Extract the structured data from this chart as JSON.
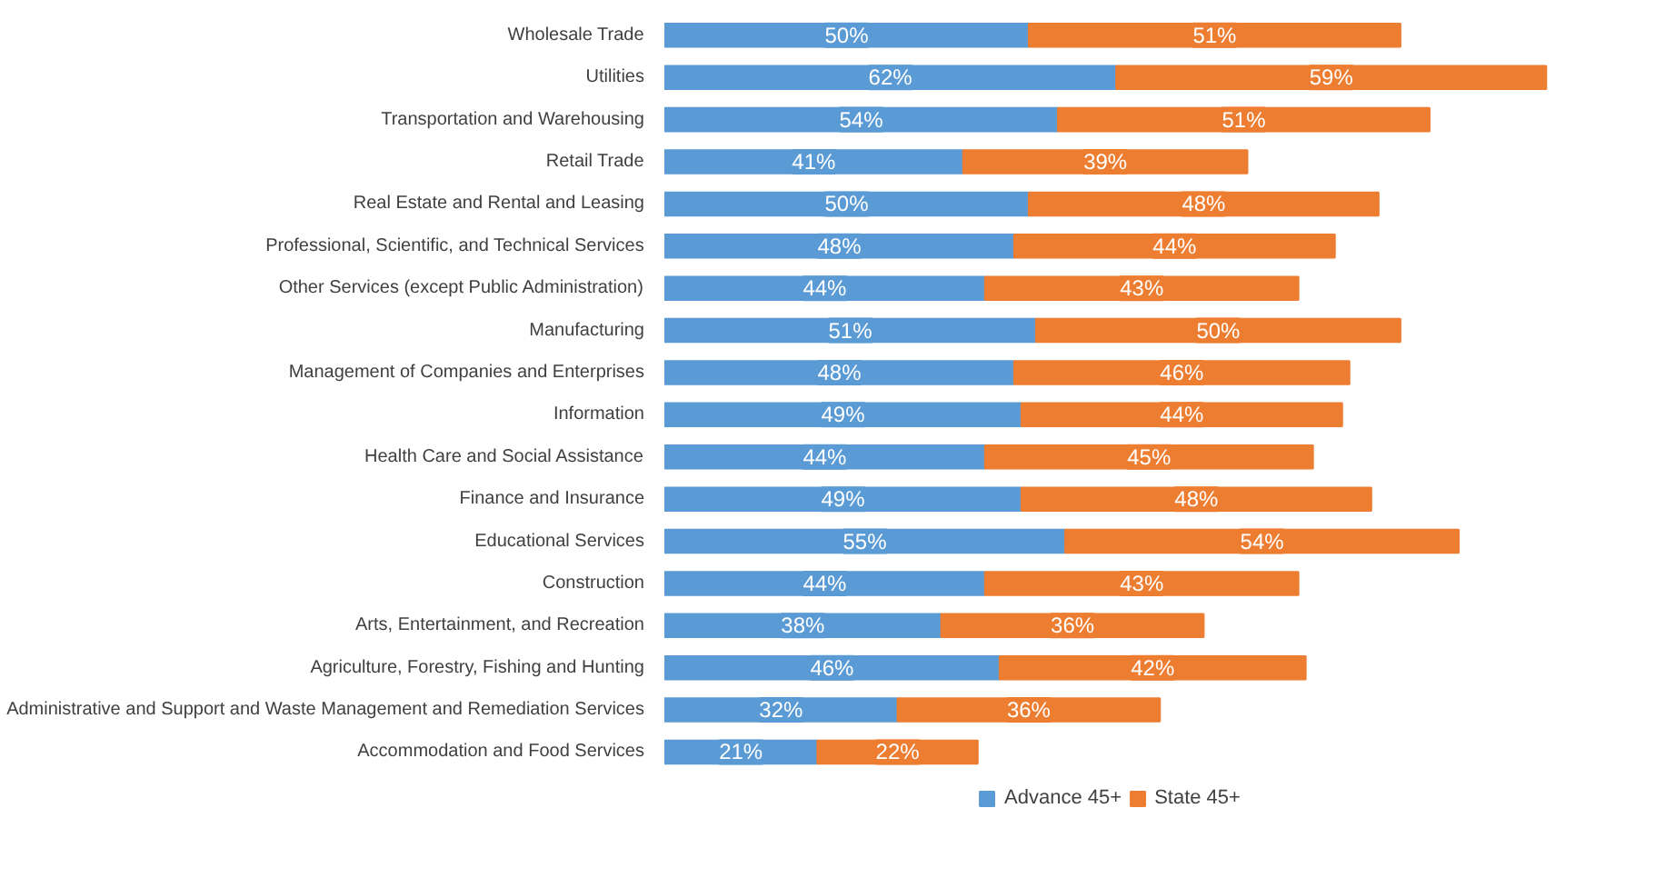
{
  "chart_data": {
    "type": "bar",
    "orientation": "horizontal",
    "stacked": true,
    "legend": "bottom",
    "grid": false,
    "categories": [
      "Wholesale Trade",
      "Utilities",
      "Transportation and Warehousing",
      "Retail Trade",
      "Real Estate and Rental and Leasing",
      "Professional, Scientific, and Technical Services",
      "Other Services (except Public Administration)",
      "Manufacturing",
      "Management of Companies and Enterprises",
      "Information",
      "Health Care and Social Assistance",
      "Finance and Insurance",
      "Educational Services",
      "Construction",
      "Arts, Entertainment, and Recreation",
      "Agriculture, Forestry, Fishing and Hunting",
      "Administrative and Support and Waste Management and Remediation Services",
      "Accommodation and Food Services"
    ],
    "series": [
      {
        "name": "Advance 45+",
        "color": "#5b9bd5",
        "values": [
          50,
          62,
          54,
          41,
          50,
          48,
          44,
          51,
          48,
          49,
          44,
          49,
          55,
          44,
          38,
          46,
          32,
          21
        ],
        "value_labels": [
          "50%",
          "62%",
          "54%",
          "41%",
          "50%",
          "48%",
          "44%",
          "51%",
          "48%",
          "49%",
          "44%",
          "49%",
          "55%",
          "44%",
          "38%",
          "46%",
          "32%",
          "21%"
        ]
      },
      {
        "name": "State 45+",
        "color": "#ed7d31",
        "values": [
          51,
          59,
          51,
          39,
          48,
          44,
          43,
          50,
          46,
          44,
          45,
          48,
          54,
          43,
          36,
          42,
          36,
          22
        ],
        "value_labels": [
          "51%",
          "59%",
          "51%",
          "39%",
          "48%",
          "44%",
          "43%",
          "50%",
          "46%",
          "44%",
          "45%",
          "48%",
          "54%",
          "43%",
          "36%",
          "42%",
          "36%",
          "22%"
        ]
      }
    ]
  }
}
